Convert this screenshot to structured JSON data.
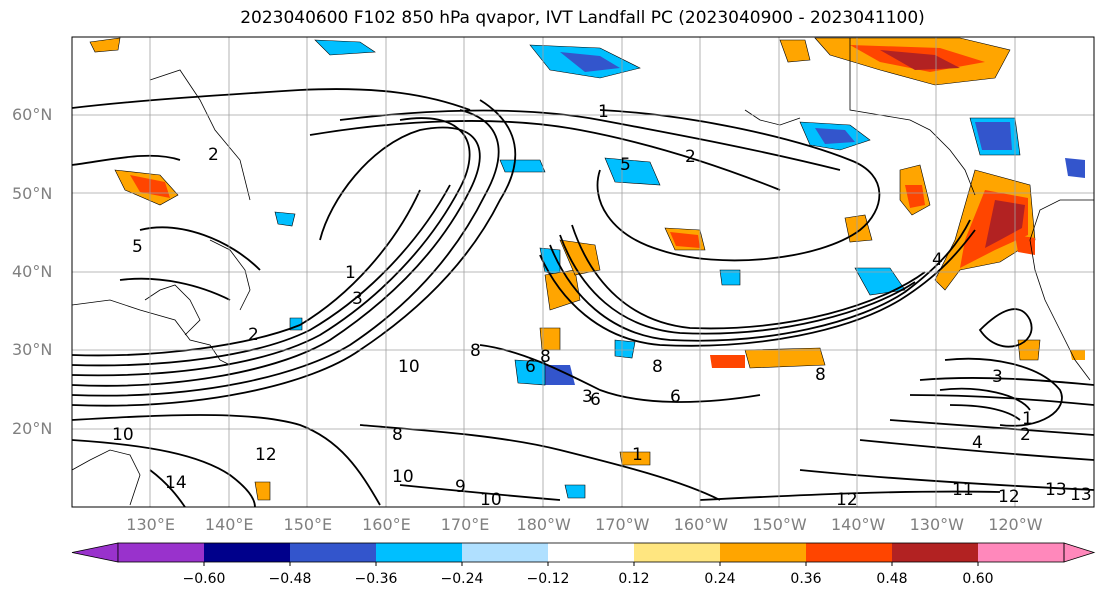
{
  "title": "2023040600 F102 850 hPa qvapor, IVT Landfall PC (2023040900 - 2023041100)",
  "lat_labels": [
    {
      "label": "60°N",
      "lat": 60
    },
    {
      "label": "50°N",
      "lat": 50
    },
    {
      "label": "40°N",
      "lat": 40
    },
    {
      "label": "30°N",
      "lat": 30
    },
    {
      "label": "20°N",
      "lat": 20
    }
  ],
  "lon_labels": [
    {
      "label": "130°E",
      "lon": 130
    },
    {
      "label": "140°E",
      "lon": 140
    },
    {
      "label": "150°E",
      "lon": 150
    },
    {
      "label": "160°E",
      "lon": 160
    },
    {
      "label": "170°E",
      "lon": 170
    },
    {
      "label": "180°W",
      "lon": 180
    },
    {
      "label": "170°W",
      "lon": 190
    },
    {
      "label": "160°W",
      "lon": 200
    },
    {
      "label": "150°W",
      "lon": 210
    },
    {
      "label": "140°W",
      "lon": 220
    },
    {
      "label": "130°W",
      "lon": 230
    },
    {
      "label": "120°W",
      "lon": 240
    }
  ],
  "extent": {
    "lon_min": 120,
    "lon_max": 250,
    "lat_min": 10,
    "lat_max": 70
  },
  "colorbar": {
    "colors": [
      "#9932cc",
      "#00008b",
      "#3355cc",
      "#00bfff",
      "#b0e0ff",
      "#ffffff",
      "#ffe680",
      "#ffa500",
      "#ff4500",
      "#b22222",
      "#ff88bb"
    ],
    "tick_labels": [
      "−0.60",
      "−0.48",
      "−0.36",
      "−0.24",
      "−0.12",
      "0.12",
      "0.24",
      "0.36",
      "0.48",
      "0.60"
    ],
    "extend": "both"
  },
  "contour_labels": [
    "1",
    "3",
    "1",
    "2",
    "8",
    "6",
    "8",
    "8",
    "6",
    "6",
    "8",
    "10",
    "8",
    "9",
    "10",
    "10",
    "12",
    "11",
    "12",
    "13",
    "13",
    "3",
    "1",
    "2",
    "4",
    "4",
    "2",
    "2",
    "5",
    "10",
    "14",
    "12",
    "1",
    "3",
    "5"
  ],
  "colors": {
    "grid": "#a0a0a0",
    "contour": "#000000",
    "axis_label": "#808080"
  }
}
